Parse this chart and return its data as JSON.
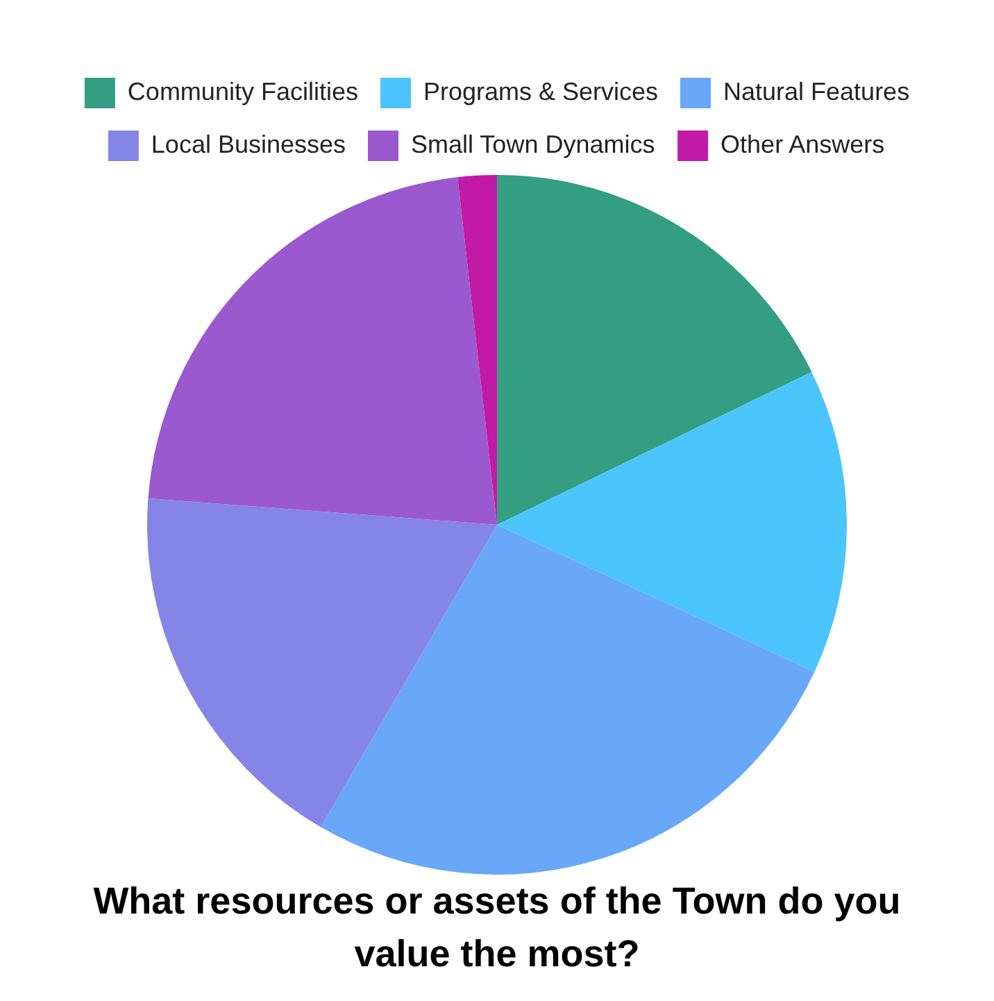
{
  "chart_data": {
    "type": "pie",
    "title": "What resources or assets of the Town do you value the most?",
    "categories": [
      "Community Facilities",
      "Programs & Services",
      "Natural Features",
      "Local Businesses",
      "Small Town Dynamics",
      "Other Answers"
    ],
    "values": [
      17.8,
      14.1,
      26.5,
      17.8,
      22,
      1.8
    ],
    "colors": [
      "#339e82",
      "#4bc5fc",
      "#69a8f9",
      "#8585e8",
      "#9b59d0",
      "#c01aa6"
    ],
    "legend": "top"
  }
}
